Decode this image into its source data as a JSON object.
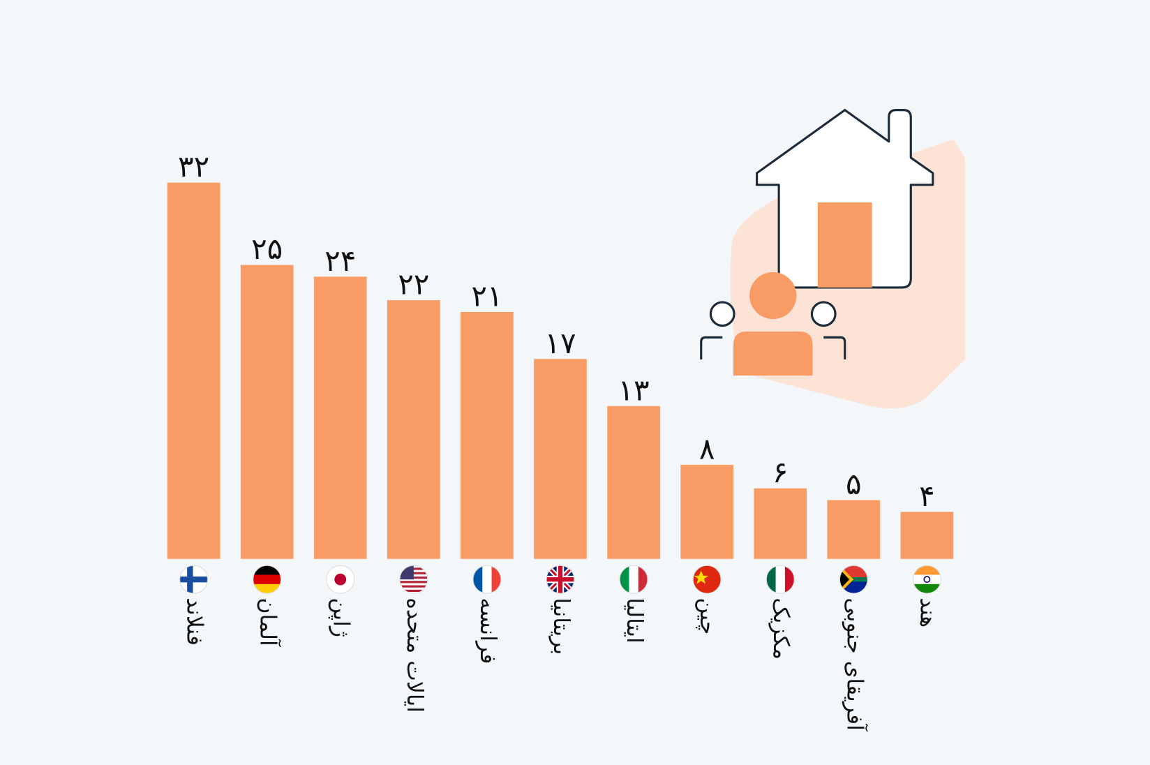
{
  "chart_data": {
    "type": "bar",
    "categories": [
      "فنلاند",
      "آلمان",
      "ژاپن",
      "ایالات متحده",
      "فرانسه",
      "بریتانیا",
      "ایتالیا",
      "چین",
      "مکزیک",
      "آفریقای جنوبی",
      "هند"
    ],
    "values": [
      32,
      25,
      24,
      22,
      21,
      17,
      13,
      8,
      6,
      5,
      4
    ],
    "value_labels": [
      "۳۲",
      "۲۵",
      "۲۴",
      "۲۲",
      "۲۱",
      "۱۷",
      "۱۳",
      "۸",
      "۶",
      "۵",
      "۴"
    ],
    "color": "#f99b65"
  }
}
